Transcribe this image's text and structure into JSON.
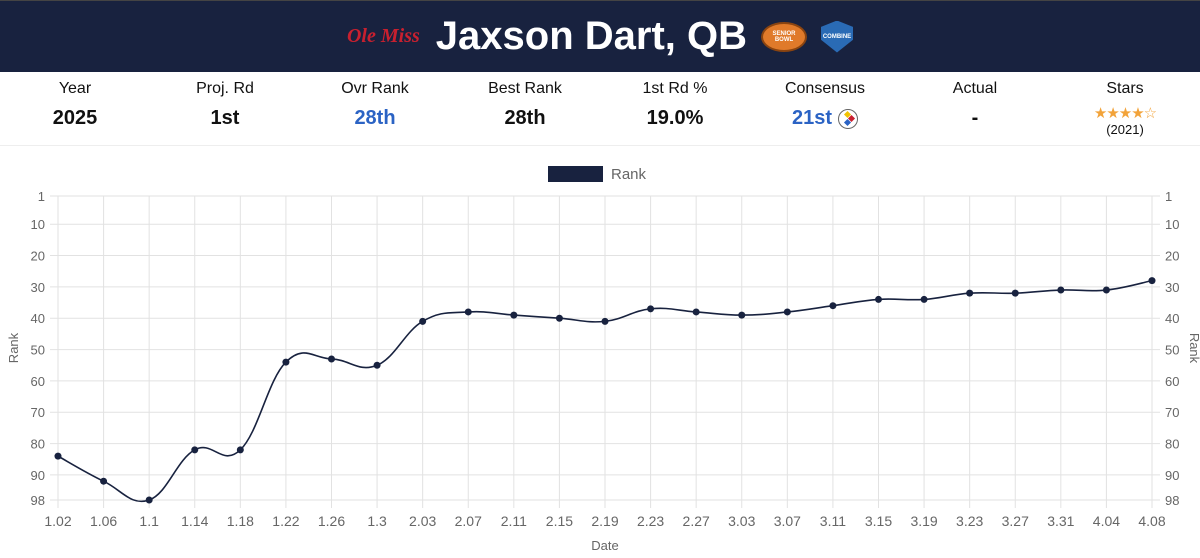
{
  "header": {
    "school": "Ole Miss",
    "title": "Jaxson Dart, QB",
    "bowl_badge": "Senior Bowl",
    "combine_badge": "Combine"
  },
  "stats": [
    {
      "label": "Year",
      "value": "2025"
    },
    {
      "label": "Proj. Rd",
      "value": "1st"
    },
    {
      "label": "Ovr Rank",
      "value": "28th"
    },
    {
      "label": "Best Rank",
      "value": "28th"
    },
    {
      "label": "1st Rd %",
      "value": "19.0%"
    },
    {
      "label": "Consensus",
      "value": "21st",
      "icon": "steelers-logo-icon"
    },
    {
      "label": "Actual",
      "value": "-"
    },
    {
      "label": "Stars",
      "stars": 4,
      "max_stars": 5,
      "sub": "(2021)"
    }
  ],
  "colors": {
    "header_bg": "#18223f",
    "accent_blue": "#2b63c4",
    "line": "#18223f",
    "star": "#f2a33a"
  },
  "chart_data": {
    "type": "line",
    "legend": {
      "label": "Rank",
      "position": "top"
    },
    "xlabel": "Date",
    "ylabel": "Rank",
    "ylabel_right": "Rank",
    "y_reversed": true,
    "ylim": [
      1,
      98
    ],
    "yticks": [
      1,
      10,
      20,
      30,
      40,
      50,
      60,
      70,
      80,
      90,
      98
    ],
    "grid": true,
    "categories": [
      "1.02",
      "1.06",
      "1.1",
      "1.14",
      "1.18",
      "1.22",
      "1.26",
      "1.3",
      "2.03",
      "2.07",
      "2.11",
      "2.15",
      "2.19",
      "2.23",
      "2.27",
      "3.03",
      "3.07",
      "3.11",
      "3.15",
      "3.19",
      "3.23",
      "3.27",
      "3.31",
      "4.04",
      "4.08"
    ],
    "series": [
      {
        "name": "Rank",
        "values": [
          84,
          92,
          98,
          82,
          82,
          54,
          53,
          55,
          41,
          38,
          39,
          40,
          41,
          37,
          38,
          39,
          38,
          36,
          34,
          34,
          32,
          32,
          31,
          31,
          28
        ]
      }
    ]
  }
}
